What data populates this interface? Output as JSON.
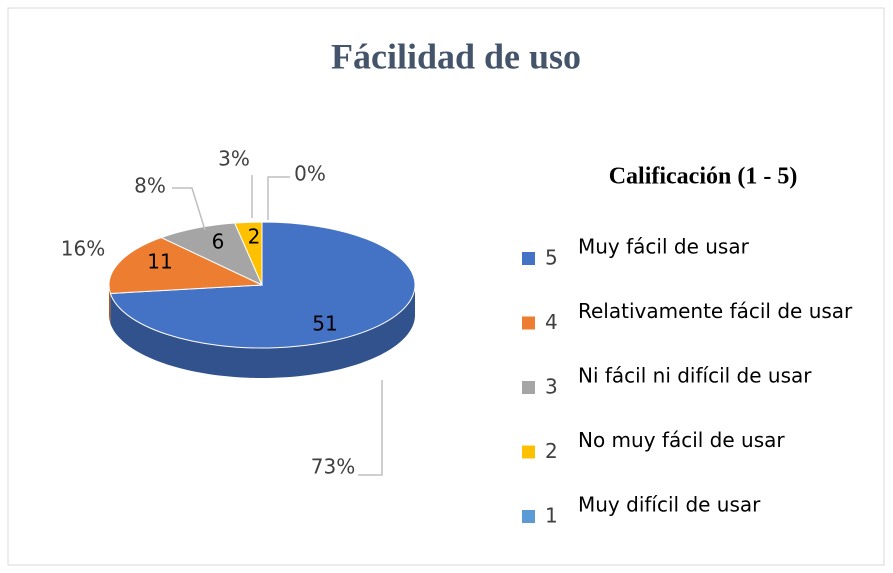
{
  "chart_data": {
    "type": "pie3d",
    "title": "Fácilidad de uso",
    "legend_title": "Calificación (1 - 5)",
    "categories": [
      "5",
      "4",
      "3",
      "2",
      "1"
    ],
    "descriptions": [
      "Muy fácil de usar",
      "Relativamente fácil de usar",
      "Ni fácil ni difícil de usar",
      "No muy fácil de usar",
      "Muy difícil de usar"
    ],
    "values": [
      51,
      11,
      6,
      2,
      0
    ],
    "percentages": [
      73,
      16,
      8,
      3,
      0
    ],
    "percentage_labels": [
      "73%",
      "16%",
      "8%",
      "3%",
      "0%"
    ],
    "colors": [
      "#4472c4",
      "#ed7d31",
      "#a5a5a5",
      "#ffc000",
      "#5b9bd5"
    ],
    "legend": "right"
  }
}
